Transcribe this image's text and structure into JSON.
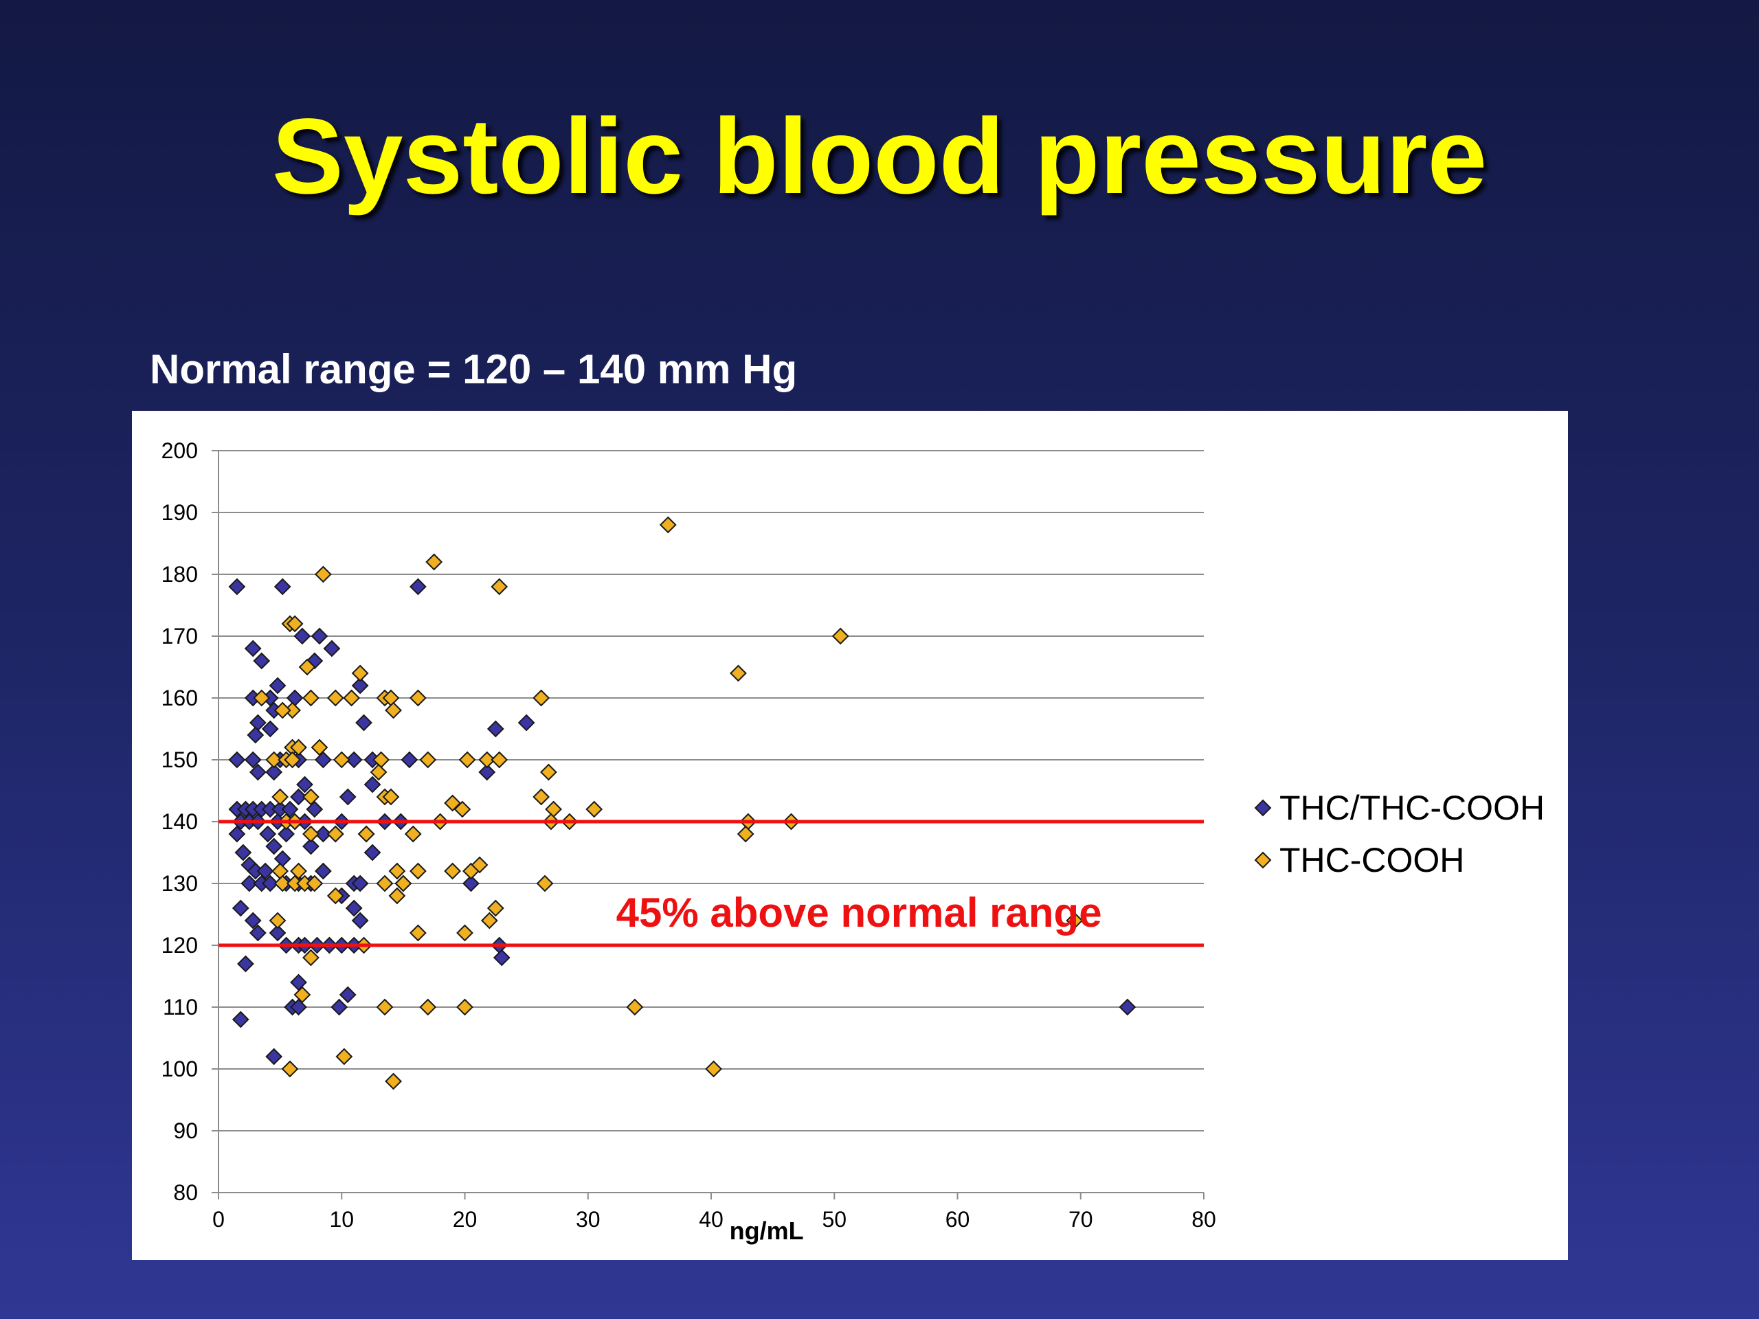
{
  "slide": {
    "title": "Systolic blood pressure",
    "subtitle": "Normal range = 120 – 140 mm Hg"
  },
  "chart_data": {
    "type": "scatter",
    "xlabel": "ng/mL",
    "ylabel": "",
    "xlim": [
      0,
      80
    ],
    "ylim": [
      80,
      200
    ],
    "x_ticks": [
      0,
      10,
      20,
      30,
      40,
      50,
      60,
      70,
      80
    ],
    "y_ticks": [
      80,
      90,
      100,
      110,
      120,
      130,
      140,
      150,
      160,
      170,
      180,
      190,
      200
    ],
    "grid": "horizontal",
    "legend_position": "right",
    "reference_lines": [
      {
        "y": 140,
        "color": "#ee1111"
      },
      {
        "y": 120,
        "color": "#ee1111"
      }
    ],
    "annotation": {
      "text": "45% above normal range",
      "x": 52,
      "y": 123,
      "color": "#ee1111"
    },
    "series": [
      {
        "name": "THC/THC-COOH",
        "color": "#3a35a0",
        "points": [
          [
            1.5,
            178
          ],
          [
            5.2,
            178
          ],
          [
            16.2,
            178
          ],
          [
            2.8,
            168
          ],
          [
            3.5,
            166
          ],
          [
            6.8,
            170
          ],
          [
            8.2,
            170
          ],
          [
            9.2,
            168
          ],
          [
            7.8,
            166
          ],
          [
            4.2,
            160
          ],
          [
            4.8,
            162
          ],
          [
            2.8,
            160
          ],
          [
            3.2,
            156
          ],
          [
            4.5,
            158
          ],
          [
            3.0,
            154
          ],
          [
            4.2,
            155
          ],
          [
            6.2,
            160
          ],
          [
            11.5,
            162
          ],
          [
            11.8,
            156
          ],
          [
            22.5,
            155
          ],
          [
            25.0,
            156
          ],
          [
            1.5,
            150
          ],
          [
            2.8,
            150
          ],
          [
            3.2,
            148
          ],
          [
            4.5,
            148
          ],
          [
            5.0,
            150
          ],
          [
            6.5,
            150
          ],
          [
            8.5,
            150
          ],
          [
            11.0,
            150
          ],
          [
            12.5,
            150
          ],
          [
            15.5,
            150
          ],
          [
            21.8,
            148
          ],
          [
            1.5,
            142
          ],
          [
            2.2,
            142
          ],
          [
            2.8,
            142
          ],
          [
            3.5,
            142
          ],
          [
            4.2,
            142
          ],
          [
            5.0,
            142
          ],
          [
            5.8,
            142
          ],
          [
            6.5,
            144
          ],
          [
            7.0,
            146
          ],
          [
            7.8,
            142
          ],
          [
            10.5,
            144
          ],
          [
            12.5,
            146
          ],
          [
            1.8,
            140
          ],
          [
            2.5,
            140
          ],
          [
            3.2,
            140
          ],
          [
            4.0,
            138
          ],
          [
            4.8,
            140
          ],
          [
            5.5,
            138
          ],
          [
            6.2,
            140
          ],
          [
            7.0,
            140
          ],
          [
            8.5,
            138
          ],
          [
            9.5,
            138
          ],
          [
            10.0,
            140
          ],
          [
            12.0,
            138
          ],
          [
            13.5,
            140
          ],
          [
            14.8,
            140
          ],
          [
            1.5,
            138
          ],
          [
            2.0,
            135
          ],
          [
            2.5,
            133
          ],
          [
            3.0,
            132
          ],
          [
            3.8,
            132
          ],
          [
            4.5,
            136
          ],
          [
            5.2,
            134
          ],
          [
            7.5,
            136
          ],
          [
            12.5,
            135
          ],
          [
            2.5,
            130
          ],
          [
            3.5,
            130
          ],
          [
            4.2,
            130
          ],
          [
            5.5,
            130
          ],
          [
            6.5,
            130
          ],
          [
            7.5,
            130
          ],
          [
            8.5,
            132
          ],
          [
            10.0,
            128
          ],
          [
            11.0,
            130
          ],
          [
            11.5,
            130
          ],
          [
            15.0,
            130
          ],
          [
            20.5,
            130
          ],
          [
            1.8,
            126
          ],
          [
            2.8,
            124
          ],
          [
            3.2,
            122
          ],
          [
            4.8,
            122
          ],
          [
            5.5,
            120
          ],
          [
            6.5,
            120
          ],
          [
            7.0,
            120
          ],
          [
            8.0,
            120
          ],
          [
            9.0,
            120
          ],
          [
            10.0,
            120
          ],
          [
            11.0,
            126
          ],
          [
            11.5,
            124
          ],
          [
            11.0,
            120
          ],
          [
            22.8,
            120
          ],
          [
            23.0,
            118
          ],
          [
            2.2,
            117
          ],
          [
            6.5,
            114
          ],
          [
            6.0,
            110
          ],
          [
            6.5,
            110
          ],
          [
            9.8,
            110
          ],
          [
            10.5,
            112
          ],
          [
            1.8,
            108
          ],
          [
            4.5,
            102
          ],
          [
            73.8,
            110
          ]
        ]
      },
      {
        "name": "THC-COOH",
        "color": "#f0b020",
        "points": [
          [
            36.5,
            188
          ],
          [
            17.5,
            182
          ],
          [
            8.5,
            180
          ],
          [
            22.8,
            178
          ],
          [
            5.8,
            172
          ],
          [
            6.2,
            172
          ],
          [
            50.5,
            170
          ],
          [
            7.2,
            165
          ],
          [
            42.2,
            164
          ],
          [
            11.5,
            164
          ],
          [
            3.5,
            160
          ],
          [
            6.0,
            158
          ],
          [
            7.5,
            160
          ],
          [
            9.5,
            160
          ],
          [
            10.8,
            160
          ],
          [
            13.5,
            160
          ],
          [
            14.0,
            160
          ],
          [
            14.2,
            158
          ],
          [
            16.2,
            160
          ],
          [
            26.2,
            160
          ],
          [
            5.2,
            158
          ],
          [
            6.0,
            152
          ],
          [
            6.5,
            152
          ],
          [
            8.2,
            152
          ],
          [
            4.5,
            150
          ],
          [
            5.5,
            150
          ],
          [
            6.0,
            150
          ],
          [
            10.0,
            150
          ],
          [
            13.2,
            150
          ],
          [
            13.0,
            148
          ],
          [
            17.0,
            150
          ],
          [
            20.2,
            150
          ],
          [
            21.8,
            150
          ],
          [
            22.8,
            150
          ],
          [
            26.8,
            148
          ],
          [
            5.0,
            144
          ],
          [
            7.5,
            144
          ],
          [
            13.5,
            144
          ],
          [
            14.0,
            144
          ],
          [
            19.0,
            143
          ],
          [
            19.8,
            142
          ],
          [
            26.2,
            144
          ],
          [
            27.2,
            142
          ],
          [
            30.5,
            142
          ],
          [
            5.5,
            140
          ],
          [
            6.2,
            140
          ],
          [
            18.0,
            140
          ],
          [
            27.0,
            140
          ],
          [
            28.5,
            140
          ],
          [
            43.0,
            140
          ],
          [
            46.5,
            140
          ],
          [
            42.8,
            138
          ],
          [
            7.5,
            138
          ],
          [
            9.5,
            138
          ],
          [
            12.0,
            138
          ],
          [
            15.8,
            138
          ],
          [
            5.0,
            132
          ],
          [
            6.5,
            132
          ],
          [
            14.5,
            132
          ],
          [
            16.2,
            132
          ],
          [
            19.0,
            132
          ],
          [
            20.5,
            132
          ],
          [
            21.2,
            133
          ],
          [
            5.2,
            130
          ],
          [
            6.2,
            130
          ],
          [
            7.0,
            130
          ],
          [
            7.8,
            130
          ],
          [
            13.5,
            130
          ],
          [
            15.0,
            130
          ],
          [
            26.5,
            130
          ],
          [
            9.5,
            128
          ],
          [
            14.5,
            128
          ],
          [
            22.5,
            126
          ],
          [
            4.8,
            124
          ],
          [
            22.0,
            124
          ],
          [
            69.5,
            124
          ],
          [
            16.2,
            122
          ],
          [
            20.0,
            122
          ],
          [
            7.5,
            118
          ],
          [
            11.8,
            120
          ],
          [
            6.8,
            112
          ],
          [
            13.5,
            110
          ],
          [
            17.0,
            110
          ],
          [
            20.0,
            110
          ],
          [
            33.8,
            110
          ],
          [
            10.2,
            102
          ],
          [
            5.8,
            100
          ],
          [
            40.2,
            100
          ],
          [
            14.2,
            98
          ]
        ]
      }
    ]
  }
}
